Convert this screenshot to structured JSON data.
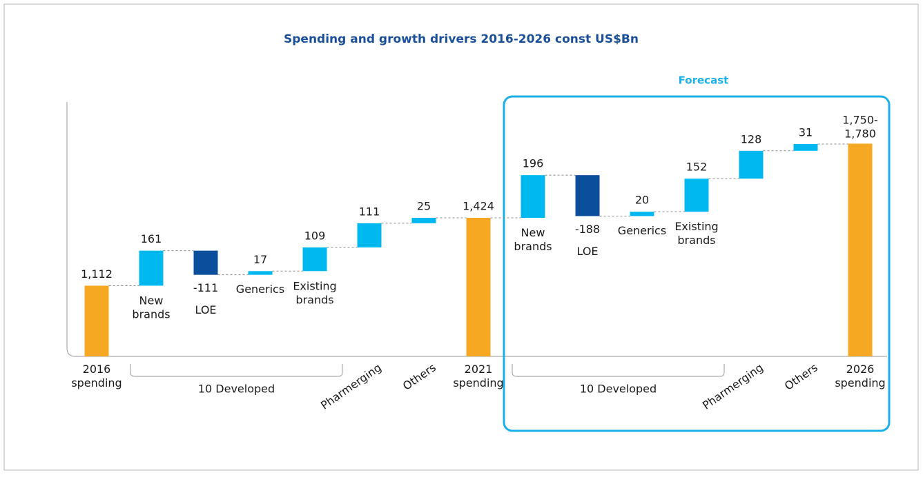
{
  "chart_data": {
    "type": "waterfall",
    "title": "Spending and growth drivers 2016-2026 const US$Bn",
    "categories": [
      "2016\nspending",
      "New\nbrands",
      "LOE",
      "Generics",
      "Existing\nbrands",
      "Pharmerging",
      "Others",
      "2021\nspending",
      "New\nbrands",
      "LOE",
      "Generics",
      "Existing\nbrands",
      "Pharmerging",
      "Others",
      "2026\nspending"
    ],
    "values": [
      1112,
      161,
      -111,
      17,
      109,
      111,
      25,
      1424,
      196,
      -188,
      20,
      152,
      128,
      31,
      1765
    ],
    "value_labels": [
      "1,112",
      "161",
      "-111",
      "17",
      "109",
      "111",
      "25",
      "1,424",
      "196",
      "-188",
      "20",
      "152",
      "128",
      "31",
      "1,750-\n1,780"
    ],
    "measures": [
      "total",
      "relative",
      "relative",
      "relative",
      "relative",
      "relative",
      "relative",
      "total",
      "relative",
      "relative",
      "relative",
      "relative",
      "relative",
      "relative",
      "total"
    ],
    "colors": {
      "total": "#f7a823",
      "increase": "#00b8f0",
      "decrease": "#0b4f9c"
    },
    "groups": [
      {
        "label": "10 Developed",
        "from": 1,
        "to": 4
      },
      {
        "label": "10 Developed",
        "from": 8,
        "to": 11
      }
    ],
    "forecast": {
      "label": "Forecast",
      "from": 8,
      "to": 14
    },
    "ylim": [
      787,
      1950
    ]
  }
}
